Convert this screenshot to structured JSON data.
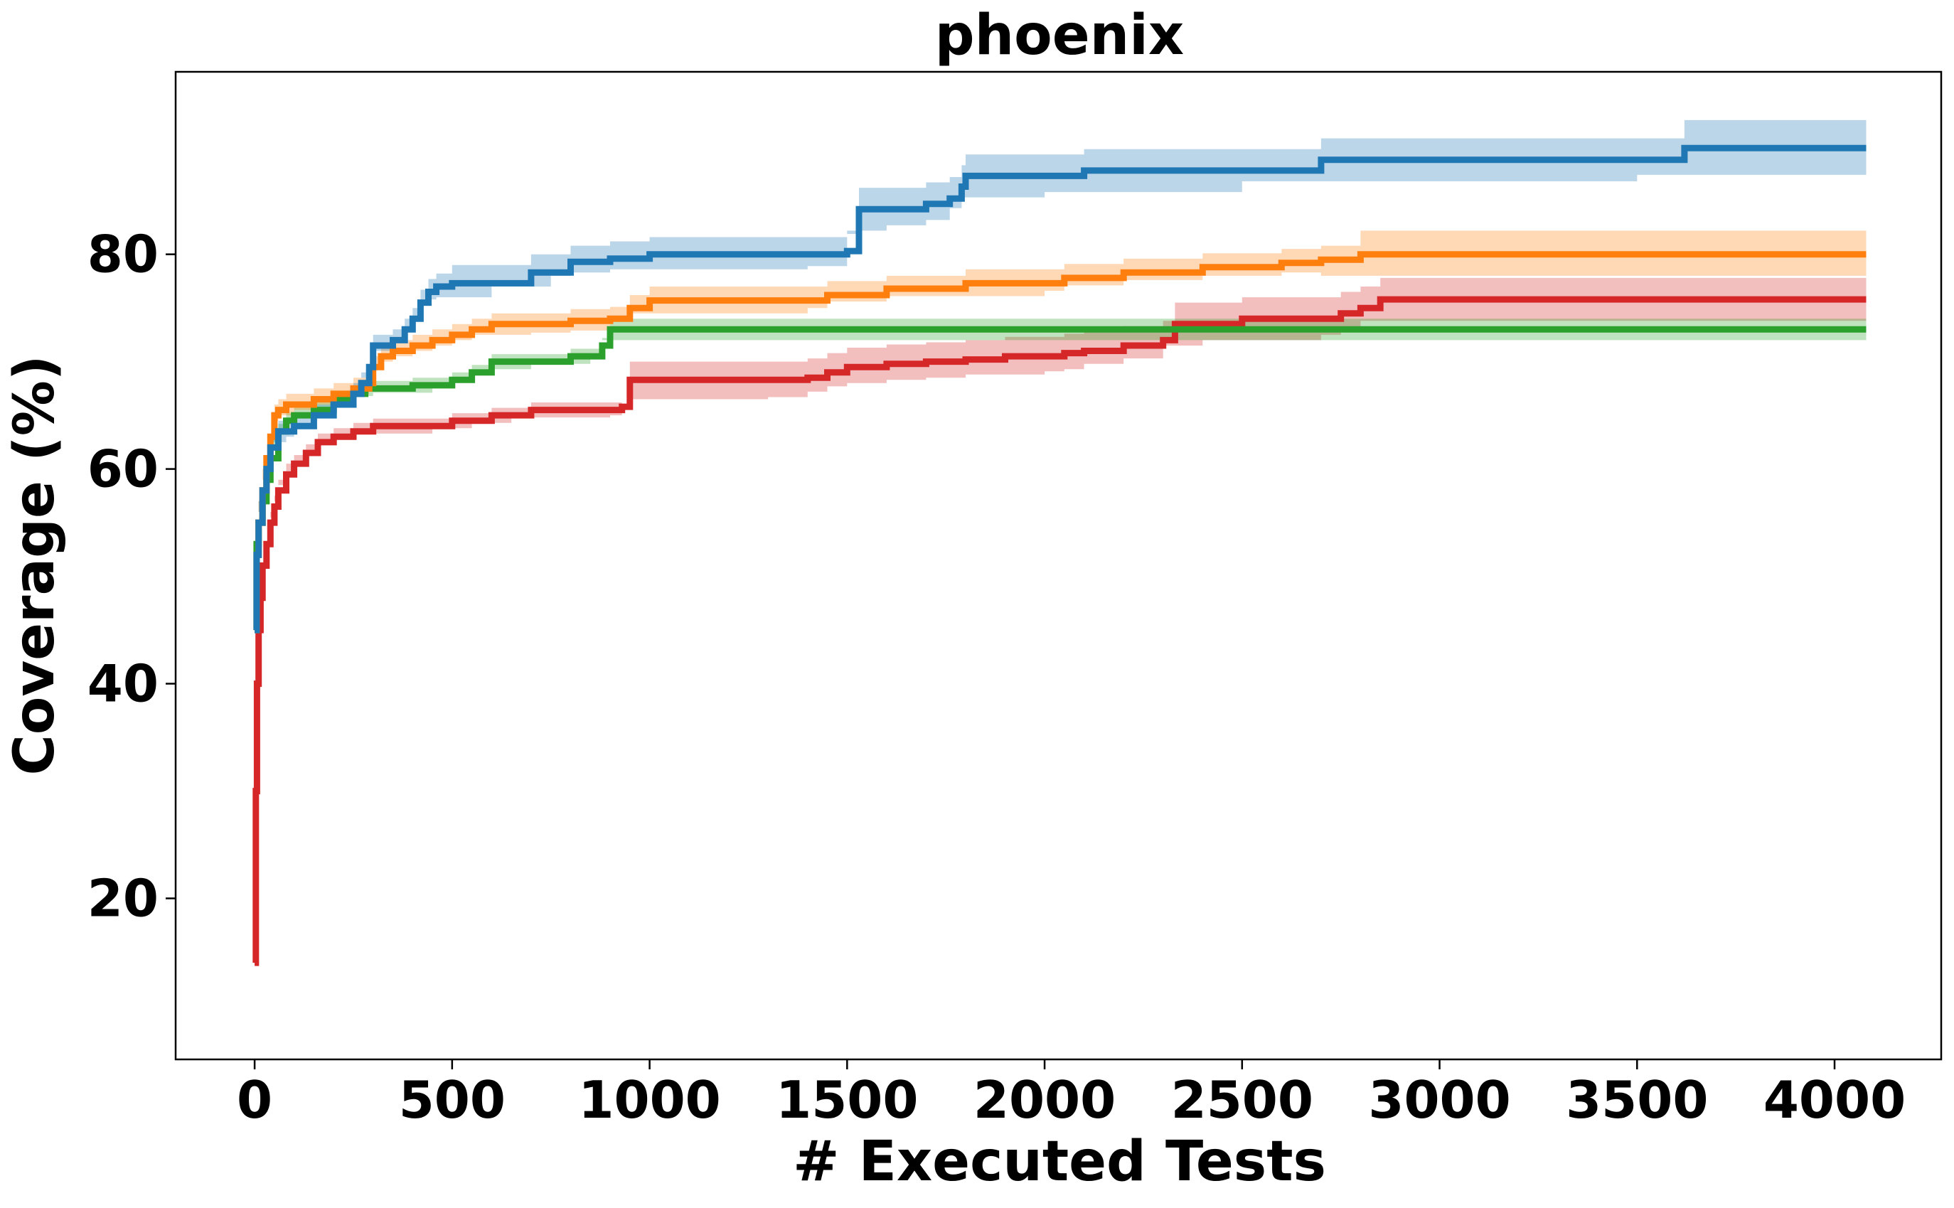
{
  "chart_data": {
    "type": "line",
    "title": "phoenix",
    "xlabel": "# Executed Tests",
    "ylabel": "Coverage (%)",
    "xlim": [
      -200,
      4270
    ],
    "ylim": [
      5,
      97
    ],
    "xticks": [
      0,
      500,
      1000,
      1500,
      2000,
      2500,
      3000,
      3500,
      4000
    ],
    "yticks": [
      20,
      40,
      60,
      80
    ],
    "grid": false,
    "series": [
      {
        "color": "#d62728",
        "band_opacity": 0.3,
        "x": [
          0,
          3,
          6,
          10,
          15,
          20,
          30,
          40,
          50,
          60,
          80,
          100,
          130,
          160,
          200,
          250,
          300,
          350,
          400,
          450,
          500,
          550,
          600,
          650,
          700,
          800,
          900,
          930,
          950,
          1000,
          1100,
          1200,
          1300,
          1400,
          1450,
          1500,
          1600,
          1700,
          1800,
          1900,
          2000,
          2050,
          2100,
          2200,
          2300,
          2330,
          2400,
          2500,
          2600,
          2700,
          2750,
          2800,
          2850,
          2900,
          3000,
          3500,
          4000,
          4080
        ],
        "y": [
          14,
          30,
          40,
          45,
          48,
          51,
          53,
          55,
          56.5,
          58,
          59.5,
          60.5,
          61.5,
          62.5,
          63,
          63.5,
          64,
          64,
          64,
          64,
          64.5,
          64.5,
          65,
          65,
          65.5,
          65.5,
          65.5,
          65.8,
          68.3,
          68.3,
          68.3,
          68.3,
          68.3,
          68.5,
          69,
          69.5,
          69.8,
          70,
          70.2,
          70.5,
          70.5,
          70.8,
          71,
          71.5,
          72,
          73.5,
          73.5,
          74,
          74,
          74,
          74.5,
          75,
          75.8,
          75.8,
          75.8,
          75.8,
          75.8,
          75.8
        ],
        "lower": [
          14,
          29,
          39,
          44,
          47,
          50,
          52,
          54,
          55.5,
          57,
          58.5,
          59.8,
          60.8,
          61.8,
          62.3,
          62.8,
          63.3,
          63.3,
          63.3,
          63.3,
          63.8,
          63.8,
          64.3,
          64.3,
          64.8,
          64.8,
          64.8,
          65,
          66.5,
          66.5,
          66.5,
          66.5,
          66.5,
          66.7,
          67.2,
          67.7,
          68,
          68.3,
          68.5,
          68.8,
          68.8,
          69.1,
          69.3,
          69.8,
          70.3,
          71.5,
          71.5,
          72,
          72,
          72,
          72.5,
          73,
          73.8,
          73.8,
          73.8,
          73.8,
          73.8,
          73.8
        ],
        "upper": [
          14,
          31,
          41,
          46,
          49,
          52,
          54,
          56,
          57.5,
          59,
          60.5,
          61.3,
          62.3,
          63.3,
          63.8,
          64.3,
          64.7,
          64.7,
          64.7,
          64.7,
          65.2,
          65.2,
          65.7,
          65.7,
          66.2,
          66.2,
          66.2,
          66.5,
          70,
          70,
          70,
          70,
          70,
          70.3,
          70.8,
          71.3,
          71.6,
          71.8,
          72,
          72.3,
          72.3,
          72.6,
          72.8,
          73.3,
          73.8,
          75.5,
          75.5,
          76,
          76,
          76,
          76.5,
          77,
          77.8,
          77.8,
          77.8,
          77.8,
          77.8,
          77.8
        ]
      },
      {
        "color": "#2ca02c",
        "band_opacity": 0.3,
        "x": [
          0,
          5,
          10,
          20,
          30,
          40,
          60,
          80,
          100,
          150,
          200,
          250,
          280,
          300,
          400,
          450,
          500,
          550,
          600,
          700,
          800,
          850,
          880,
          900,
          1000,
          1500,
          2000,
          2500,
          3000,
          3500,
          4000,
          4080
        ],
        "y": [
          45,
          53,
          55,
          57,
          59,
          61,
          63.5,
          64.5,
          65,
          65.5,
          66.5,
          67,
          67.5,
          67.5,
          67.8,
          67.8,
          68.3,
          69,
          70,
          70,
          70.5,
          70.5,
          71.5,
          73,
          73,
          73,
          73,
          73,
          73,
          73,
          73,
          73
        ],
        "lower": [
          44,
          52,
          54,
          56,
          58,
          60,
          62.8,
          63.8,
          64.3,
          64.8,
          65.8,
          66.3,
          66.8,
          66.8,
          67.1,
          67.1,
          67.6,
          68.3,
          69.3,
          69.3,
          69.8,
          69.8,
          70.8,
          72,
          72,
          72,
          72,
          72,
          72,
          72,
          72,
          72
        ],
        "upper": [
          46,
          54,
          56,
          58,
          60,
          62,
          64.2,
          65.2,
          65.7,
          66.2,
          67.2,
          67.7,
          68.2,
          68.2,
          68.5,
          68.5,
          69,
          69.7,
          70.7,
          70.7,
          71.2,
          71.2,
          72.2,
          74,
          74,
          74,
          74,
          74,
          74,
          74,
          74,
          74
        ]
      },
      {
        "color": "#ff7f0e",
        "band_opacity": 0.3,
        "x": [
          0,
          5,
          10,
          20,
          30,
          40,
          50,
          60,
          80,
          100,
          150,
          200,
          250,
          290,
          300,
          320,
          350,
          400,
          450,
          500,
          550,
          600,
          700,
          800,
          900,
          950,
          1000,
          1200,
          1400,
          1450,
          1600,
          1800,
          2000,
          2050,
          2200,
          2400,
          2600,
          2700,
          2800,
          3000,
          3500,
          4000,
          4080
        ],
        "y": [
          45,
          52,
          55,
          58,
          61,
          63,
          65,
          65.5,
          66,
          66,
          66.5,
          67,
          67.5,
          68,
          69.5,
          70.5,
          71,
          71.5,
          72,
          72.5,
          73,
          73.5,
          73.5,
          73.8,
          74,
          75,
          75.7,
          75.7,
          75.7,
          76.2,
          76.8,
          77.3,
          77.3,
          77.8,
          78.3,
          78.8,
          79.2,
          79.5,
          80,
          80,
          80,
          80,
          80
        ],
        "lower": [
          44,
          51,
          54,
          57,
          60,
          62,
          64,
          64.5,
          65,
          65,
          65.5,
          66,
          66.5,
          67,
          68.5,
          69.5,
          70,
          70.5,
          71,
          71.5,
          72,
          72.5,
          72.5,
          72.7,
          72.9,
          73.8,
          74.5,
          74.5,
          74.5,
          75,
          75.6,
          76.1,
          76.1,
          76.6,
          77.1,
          77.6,
          78,
          78.3,
          78,
          78,
          78,
          78,
          78
        ],
        "upper": [
          46,
          53,
          56,
          59,
          62,
          64,
          66,
          66.5,
          67,
          67,
          67.5,
          68,
          68.5,
          69,
          70.5,
          71.5,
          72,
          72.5,
          73,
          73.5,
          74,
          74.5,
          74.5,
          74.9,
          75.1,
          76.2,
          77,
          77,
          77,
          77.5,
          78,
          78.6,
          78.6,
          79.1,
          79.6,
          80.1,
          80.5,
          80.8,
          82.2,
          82.2,
          82.2,
          82.2,
          82.2
        ]
      },
      {
        "color": "#1f77b4",
        "band_opacity": 0.3,
        "x": [
          0,
          5,
          10,
          20,
          30,
          40,
          60,
          80,
          100,
          150,
          200,
          250,
          270,
          290,
          300,
          350,
          380,
          400,
          420,
          440,
          460,
          500,
          600,
          700,
          750,
          800,
          900,
          1000,
          1200,
          1400,
          1500,
          1530,
          1600,
          1700,
          1760,
          1790,
          1800,
          2000,
          2100,
          2500,
          2700,
          2800,
          3000,
          3500,
          3620,
          4000,
          4080
        ],
        "y": [
          45,
          52,
          55,
          58,
          60,
          62,
          63.5,
          63.5,
          64,
          65,
          66,
          67,
          68,
          69.5,
          71.5,
          72,
          73,
          74,
          75.5,
          76.5,
          77,
          77.3,
          77.3,
          78.3,
          78.3,
          79.3,
          79.6,
          80,
          80,
          80,
          80.3,
          84.2,
          84.2,
          84.7,
          85.2,
          86.3,
          87.3,
          87.3,
          87.8,
          87.8,
          88.8,
          88.8,
          88.8,
          88.8,
          89.9,
          89.9,
          89.9
        ],
        "lower": [
          44,
          51,
          54,
          57,
          59,
          61,
          62.5,
          62.5,
          63,
          64,
          65,
          66,
          67,
          68.5,
          70.5,
          71,
          72,
          73,
          74.3,
          75.3,
          75.8,
          76,
          76,
          77,
          77,
          78,
          78.3,
          78.6,
          78.6,
          78.6,
          78.9,
          82.2,
          82.2,
          82.7,
          83.2,
          84.3,
          85.3,
          85.3,
          85.8,
          85.8,
          86.8,
          86.8,
          86.8,
          86.8,
          87.4,
          87.4,
          87.4
        ],
        "upper": [
          46,
          53,
          56,
          59,
          61,
          63,
          64.5,
          64.5,
          65,
          66,
          67,
          68,
          69,
          70.5,
          72.5,
          73,
          74,
          75,
          76.7,
          77.7,
          78.2,
          79,
          79,
          80,
          80,
          80.8,
          81.2,
          81.6,
          81.6,
          81.6,
          81.9,
          86.2,
          86.2,
          86.7,
          87.2,
          88.3,
          89.3,
          89.3,
          89.8,
          89.8,
          90.8,
          90.8,
          90.8,
          90.8,
          92.5,
          92.5,
          92.5
        ]
      }
    ]
  }
}
